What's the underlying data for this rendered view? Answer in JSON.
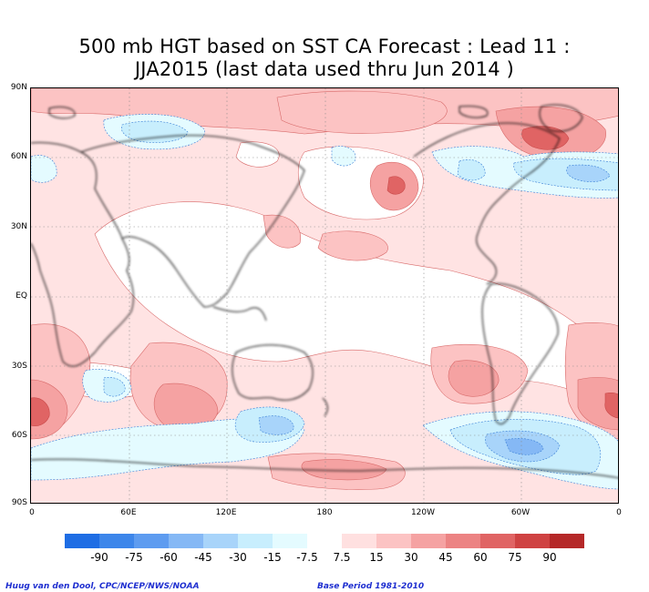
{
  "title": {
    "line1": "500 mb HGT based on SST CA Forecast : Lead 11 :",
    "line2": "JJA2015 (last data used thru Jun 2014 )"
  },
  "map": {
    "lat_labels": [
      "90N",
      "60N",
      "30N",
      "EQ",
      "30S",
      "60S",
      "90S"
    ],
    "lon_labels": [
      "0",
      "60E",
      "120E",
      "180",
      "120W",
      "60W",
      "0"
    ]
  },
  "colorbar": {
    "colors": [
      "#1e6de4",
      "#3d86ea",
      "#5e9cf0",
      "#85b8f5",
      "#a8d4fa",
      "#c8eefd",
      "#e4fbff",
      "#ffffff",
      "#ffe0e0",
      "#fcc3c3",
      "#f5a2a2",
      "#ec8383",
      "#e06464",
      "#cf4242",
      "#b52828"
    ],
    "ticks": [
      "-90",
      "-75",
      "-60",
      "-45",
      "-30",
      "-15",
      "-7.5",
      "7.5",
      "15",
      "30",
      "45",
      "60",
      "75",
      "90"
    ]
  },
  "credits": {
    "left": "Huug van den Dool, CPC/NCEP/NWS/NOAA",
    "right": "Base Period 1981-2010"
  }
}
